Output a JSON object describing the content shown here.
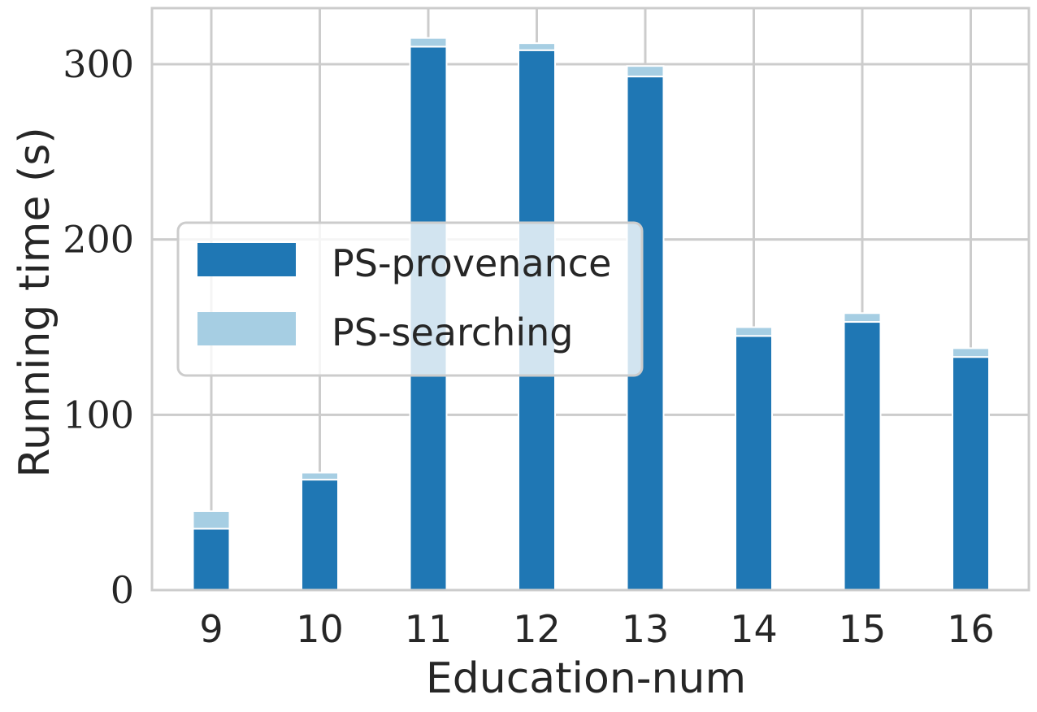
{
  "chart_data": {
    "type": "bar",
    "stacked": true,
    "categories": [
      "9",
      "10",
      "11",
      "12",
      "13",
      "14",
      "15",
      "16"
    ],
    "series": [
      {
        "name": "PS-provenance",
        "color": "#1f77b4",
        "values": [
          35,
          63,
          310,
          308,
          293,
          145,
          153,
          133
        ]
      },
      {
        "name": "PS-searching",
        "color": "#a6cee3",
        "values": [
          10,
          4,
          5,
          4,
          6,
          5,
          5,
          5
        ]
      }
    ],
    "xlabel": "Education-num",
    "ylabel": "Running time (s)",
    "ylim": [
      0,
      332
    ],
    "yticks": [
      "0",
      "100",
      "200",
      "300"
    ],
    "grid": true,
    "legend_position": "center-left"
  }
}
